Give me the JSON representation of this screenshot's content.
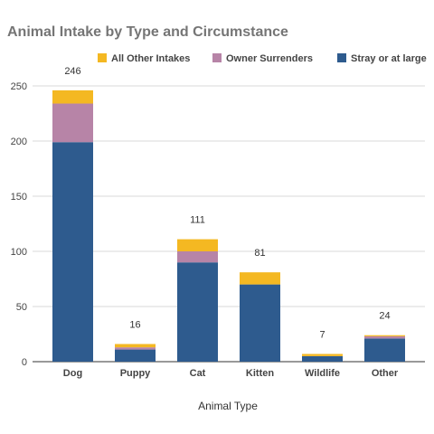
{
  "chart_data": {
    "type": "bar",
    "stacked": true,
    "title": "Animal Intake by Type and Circumstance",
    "xlabel": "Animal Type",
    "ylabel": "",
    "ylim": [
      0,
      250
    ],
    "yticks": [
      0,
      50,
      100,
      150,
      200,
      250
    ],
    "grid": true,
    "legend_position": "top",
    "categories": [
      "Dog",
      "Puppy",
      "Cat",
      "Kitten",
      "Wildlife",
      "Other"
    ],
    "series": [
      {
        "name": "Stray or at large",
        "color": "#2e5b8e",
        "values": [
          199,
          11,
          90,
          70,
          5,
          21
        ]
      },
      {
        "name": "Owner Surrenders",
        "color": "#b784a7",
        "values": [
          35,
          2,
          10,
          0,
          0,
          2
        ]
      },
      {
        "name": "All Other Intakes",
        "color": "#f4b822",
        "values": [
          12,
          3,
          11,
          11,
          2,
          1
        ]
      }
    ],
    "legend_order": [
      "All Other Intakes",
      "Owner Surrenders",
      "Stray or at large"
    ],
    "totals": [
      246,
      16,
      111,
      81,
      7,
      24
    ]
  }
}
